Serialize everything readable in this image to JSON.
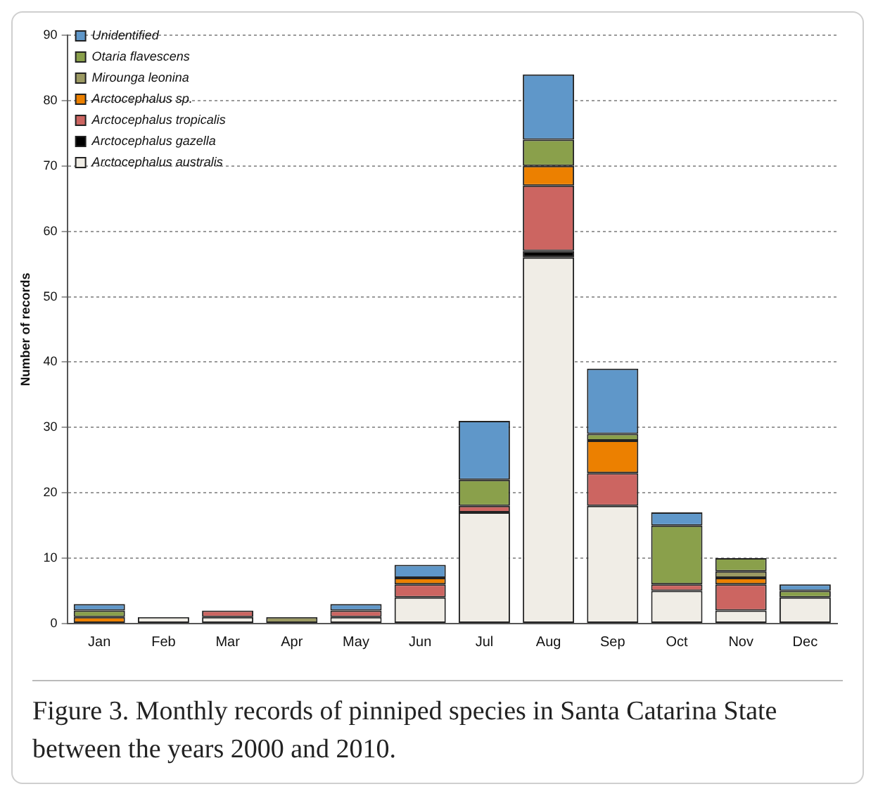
{
  "chart_data": {
    "type": "bar",
    "stacked": true,
    "ylabel": "Number of records",
    "categories": [
      "Jan",
      "Feb",
      "Mar",
      "Apr",
      "May",
      "Jun",
      "Jul",
      "Aug",
      "Sep",
      "Oct",
      "Nov",
      "Dec"
    ],
    "series": [
      {
        "name": "Arctocephalus australis",
        "color": "#f0ede6",
        "values": [
          0,
          1,
          1,
          0,
          1,
          4,
          17,
          56,
          18,
          5,
          2,
          4
        ]
      },
      {
        "name": "Arctocephalus gazella",
        "color": "#000000",
        "values": [
          0,
          0,
          0,
          0,
          0,
          0,
          0,
          1,
          0,
          0,
          0,
          0
        ]
      },
      {
        "name": "Arctocephalus tropicalis",
        "color": "#cc6561",
        "values": [
          0,
          0,
          1,
          0,
          1,
          2,
          1,
          10,
          5,
          1,
          4,
          0
        ]
      },
      {
        "name": "Arctocephalus sp.",
        "color": "#ec8000",
        "values": [
          1,
          0,
          0,
          0,
          0,
          1,
          0,
          3,
          5,
          0,
          1,
          0
        ]
      },
      {
        "name": "Mirounga leonina",
        "color": "#9c9a63",
        "values": [
          0,
          0,
          0,
          1,
          0,
          0,
          0,
          0,
          0,
          0,
          1,
          0
        ]
      },
      {
        "name": "Otaria flavescens",
        "color": "#8aa04b",
        "values": [
          1,
          0,
          0,
          0,
          0,
          0,
          4,
          4,
          1,
          9,
          2,
          1
        ]
      },
      {
        "name": "Unidentified",
        "color": "#5f97c9",
        "values": [
          1,
          0,
          0,
          0,
          1,
          2,
          9,
          10,
          10,
          2,
          0,
          1
        ]
      }
    ],
    "ylim": [
      0,
      90
    ],
    "yticks": [
      0,
      10,
      20,
      30,
      40,
      50,
      60,
      70,
      80,
      90
    ],
    "grid": "y",
    "legend": "top left",
    "annotations": [
      "Figure 3. Monthly records of pinniped species in Santa Catarina State between the years 2000 and 2010."
    ]
  }
}
